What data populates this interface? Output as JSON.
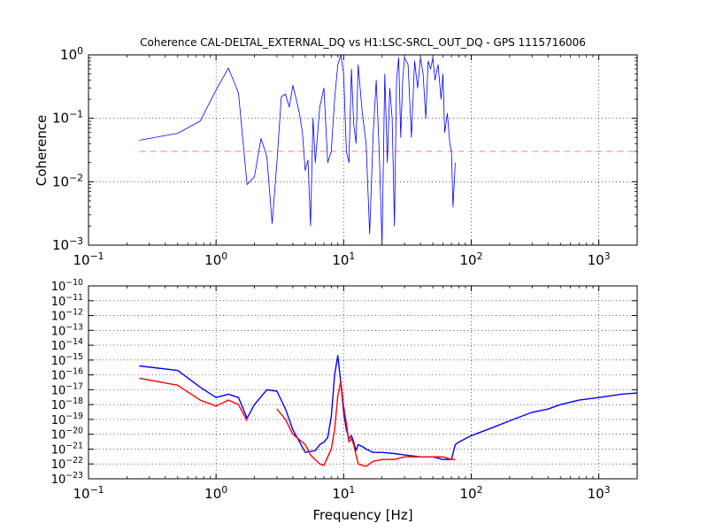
{
  "figure": {
    "title": "Coherence CAL-DELTAL_EXTERNAL_DQ vs H1:LSC-SRCL_OUT_DQ - GPS 1115716006"
  },
  "chart_data": [
    {
      "type": "line",
      "title": "Coherence CAL-DELTAL_EXTERNAL_DQ vs H1:LSC-SRCL_OUT_DQ - GPS 1115716006",
      "xlabel": "",
      "ylabel": "Coherence",
      "xscale": "log",
      "yscale": "log",
      "xlim": [
        0.1,
        2000
      ],
      "ylim": [
        0.001,
        1
      ],
      "x_ticks": [
        0.1,
        1,
        10,
        100,
        1000
      ],
      "y_ticks": [
        0.001,
        0.01,
        0.1,
        1
      ],
      "grid": true,
      "threshold": {
        "y": 0.03,
        "color": "#ff9a9a",
        "style": "dashed"
      },
      "series": [
        {
          "color": "#0000ff",
          "x": [
            0.25,
            0.5,
            0.75,
            1.0,
            1.25,
            1.5,
            1.75,
            2.0,
            2.25,
            2.5,
            2.75,
            3.0,
            3.25,
            3.5,
            3.75,
            4.0,
            4.25,
            4.5,
            4.75,
            5.0,
            5.25,
            5.5,
            5.75,
            6.0,
            6.5,
            7.0,
            7.5,
            8.0,
            8.5,
            9.0,
            9.5,
            10.0,
            10.5,
            11.0,
            11.5,
            12.0,
            12.5,
            13.0,
            14.0,
            15.0,
            16.0,
            17.0,
            18.0,
            19.0,
            20.0,
            21.0,
            22.0,
            23.0,
            24.0,
            25.0,
            26.0,
            27.0,
            28.0,
            29.0,
            30.0,
            32.0,
            34.0,
            36.0,
            38.0,
            40.0,
            42.0,
            44.0,
            46.0,
            48.0,
            50.0,
            52.0,
            55.0,
            58.0,
            60.0,
            62.0,
            65.0,
            68.0,
            70.0,
            72.0,
            75.0
          ],
          "values": [
            0.045,
            0.058,
            0.09,
            0.28,
            0.62,
            0.25,
            0.009,
            0.012,
            0.048,
            0.025,
            0.0022,
            0.02,
            0.22,
            0.24,
            0.15,
            0.33,
            0.2,
            0.12,
            0.06,
            0.015,
            0.022,
            0.002,
            0.1,
            0.02,
            0.15,
            0.3,
            0.02,
            0.03,
            0.2,
            0.7,
            1.0,
            0.5,
            0.03,
            0.02,
            0.6,
            0.08,
            0.04,
            0.7,
            0.12,
            0.04,
            0.0015,
            0.05,
            0.4,
            0.03,
            0.001,
            0.5,
            0.02,
            0.3,
            0.1,
            0.002,
            0.4,
            0.9,
            0.05,
            0.4,
            0.9,
            0.7,
            0.05,
            0.8,
            0.3,
            0.9,
            0.5,
            0.1,
            0.8,
            0.6,
            0.9,
            0.4,
            0.7,
            0.2,
            0.5,
            0.06,
            0.12,
            0.04,
            0.03,
            0.004,
            0.02
          ]
        }
      ]
    },
    {
      "type": "line",
      "title": "",
      "xlabel": "Frequency [Hz]",
      "ylabel": "",
      "xscale": "log",
      "yscale": "log",
      "xlim": [
        0.1,
        2000
      ],
      "ylim": [
        1e-23,
        1e-10
      ],
      "x_ticks": [
        0.1,
        1,
        10,
        100,
        1000
      ],
      "y_ticks": [
        1e-23,
        1e-22,
        1e-21,
        1e-20,
        1e-19,
        1e-18,
        1e-17,
        1e-16,
        1e-15,
        1e-14,
        1e-13,
        1e-12,
        1e-11,
        1e-10
      ],
      "grid": true,
      "series": [
        {
          "color": "#0000ff",
          "x": [
            0.25,
            0.5,
            0.75,
            1.0,
            1.25,
            1.5,
            1.75,
            2.0,
            2.5,
            3.0,
            3.5,
            4.0,
            5.0,
            6.0,
            6.5,
            7.0,
            7.5,
            8.0,
            8.5,
            9.0,
            9.5,
            10.0,
            10.5,
            11.0,
            11.5,
            12.0,
            12.5,
            13.0,
            14.0,
            15.0,
            17.0,
            20.0,
            25.0,
            30.0,
            40.0,
            50.0,
            60.0,
            70.0,
            75.0,
            80.0,
            100.0,
            150.0,
            200.0,
            300.0,
            400.0,
            500.0,
            700.0,
            1000.0,
            1500.0,
            2000.0
          ],
          "values": [
            4e-16,
            2e-16,
            1.5e-17,
            3e-18,
            5e-18,
            3e-18,
            1.2e-19,
            1e-18,
            1e-17,
            8e-18,
            5e-19,
            2e-20,
            6e-22,
            8e-22,
            2e-21,
            3e-21,
            6e-21,
            1.5e-19,
            1e-16,
            2e-15,
            3e-17,
            3e-19,
            2e-20,
            5e-21,
            8e-21,
            3e-21,
            8e-22,
            2e-21,
            1.5e-21,
            1e-21,
            6e-22,
            6e-22,
            5e-22,
            4e-22,
            3e-22,
            3e-22,
            2e-22,
            2e-22,
            2e-21,
            3e-21,
            8e-21,
            3e-20,
            8e-20,
            3e-19,
            5e-19,
            1e-18,
            2e-18,
            3e-18,
            5e-18,
            6e-18
          ]
        },
        {
          "color": "#ff0000",
          "x": [
            0.25,
            0.5,
            0.75,
            1.0,
            1.25,
            1.5,
            1.75,
            2.0,
            2.5,
            3.0,
            3.5,
            4.0,
            5.0,
            5.5,
            6.5,
            7.0,
            7.5,
            8.0,
            8.5,
            9.0,
            9.5,
            10.0,
            10.5,
            11.0,
            11.5,
            12.0,
            12.5,
            13.0,
            14.0,
            15.0,
            17.0,
            20.0,
            25.0,
            30.0,
            40.0,
            50.0,
            60.0,
            70.0,
            75.0
          ],
          "values": [
            6e-17,
            2e-17,
            2e-18,
            8e-19,
            2e-18,
            1e-18,
            8e-20,
            null,
            null,
            5e-19,
            1e-19,
            1e-20,
            2e-21,
            4e-22,
            1e-22,
            8e-23,
            3e-22,
            1e-21,
            2e-20,
            4e-18,
            4e-17,
            8e-19,
            5e-20,
            3e-21,
            5e-21,
            2e-21,
            4e-22,
            1e-22,
            8e-23,
            7e-23,
            1.5e-22,
            2e-22,
            2e-22,
            3e-22,
            3e-22,
            3e-22,
            3e-22,
            2e-22,
            2e-22
          ]
        }
      ]
    }
  ]
}
